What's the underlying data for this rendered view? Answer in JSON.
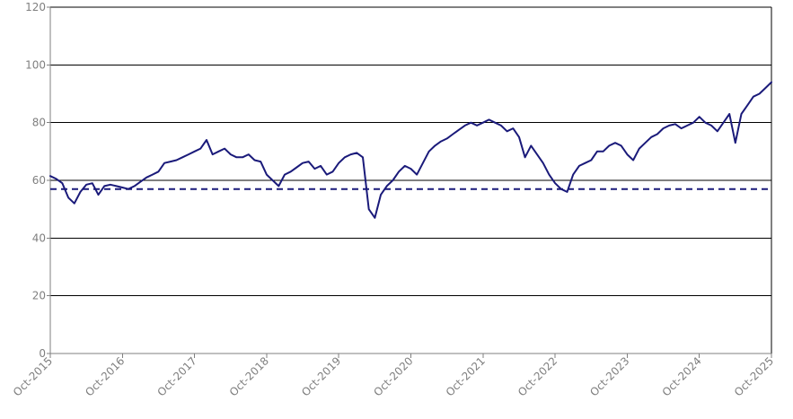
{
  "chart_data": {
    "type": "line",
    "title": "",
    "xlabel": "",
    "ylabel": "",
    "ylim": [
      0,
      120
    ],
    "yticks": [
      0,
      20,
      40,
      60,
      80,
      100,
      120
    ],
    "xlim": [
      "2015-10",
      "2025-10"
    ],
    "xticks": [
      "Oct-2015",
      "Oct-2016",
      "Oct-2017",
      "Oct-2018",
      "Oct-2019",
      "Oct-2020",
      "Oct-2021",
      "Oct-2022",
      "Oct-2023",
      "Oct-2024",
      "Oct-2025"
    ],
    "grid": "horizontal",
    "legend": "none",
    "series": [
      {
        "color": "#1a1a7a",
        "style": "solid",
        "x": [
          "2015-10",
          "2015-11",
          "2015-12",
          "2016-01",
          "2016-02",
          "2016-03",
          "2016-04",
          "2016-05",
          "2016-06",
          "2016-07",
          "2016-08",
          "2016-09",
          "2016-10",
          "2016-11",
          "2016-12",
          "2017-01",
          "2017-02",
          "2017-03",
          "2017-04",
          "2017-05",
          "2017-06",
          "2017-07",
          "2017-08",
          "2017-09",
          "2017-10",
          "2017-11",
          "2017-12",
          "2018-01",
          "2018-02",
          "2018-03",
          "2018-04",
          "2018-05",
          "2018-06",
          "2018-07",
          "2018-08",
          "2018-09",
          "2018-10",
          "2018-11",
          "2018-12",
          "2019-01",
          "2019-02",
          "2019-03",
          "2019-04",
          "2019-05",
          "2019-06",
          "2019-07",
          "2019-08",
          "2019-09",
          "2019-10",
          "2019-11",
          "2019-12",
          "2020-01",
          "2020-02",
          "2020-03",
          "2020-04",
          "2020-05",
          "2020-06",
          "2020-07",
          "2020-08",
          "2020-09",
          "2020-10",
          "2020-11",
          "2020-12",
          "2021-01",
          "2021-02",
          "2021-03",
          "2021-04",
          "2021-05",
          "2021-06",
          "2021-07",
          "2021-08",
          "2021-09",
          "2021-10",
          "2021-11",
          "2021-12",
          "2022-01",
          "2022-02",
          "2022-03",
          "2022-04",
          "2022-05",
          "2022-06",
          "2022-07",
          "2022-08",
          "2022-09",
          "2022-10",
          "2022-11",
          "2022-12",
          "2023-01",
          "2023-02",
          "2023-03",
          "2023-04",
          "2023-05",
          "2023-06",
          "2023-07",
          "2023-08",
          "2023-09",
          "2023-10",
          "2023-11",
          "2023-12",
          "2024-01",
          "2024-02",
          "2024-03",
          "2024-04",
          "2024-05",
          "2024-06",
          "2024-07",
          "2024-08",
          "2024-09",
          "2024-10",
          "2024-11",
          "2024-12",
          "2025-01",
          "2025-02",
          "2025-03",
          "2025-04",
          "2025-05",
          "2025-06",
          "2025-07",
          "2025-08",
          "2025-09",
          "2025-10"
        ],
        "values": [
          61.5,
          60.5,
          59,
          54,
          52,
          56,
          58.5,
          59,
          55,
          58,
          58.5,
          58,
          57.5,
          57,
          58,
          59.5,
          61,
          62,
          63,
          66,
          66.5,
          67,
          68,
          69,
          70,
          71,
          74,
          69,
          70,
          71,
          69,
          68,
          68,
          69,
          67,
          66.5,
          62,
          60,
          58,
          62,
          63,
          64.5,
          66,
          66.5,
          64,
          65,
          62,
          63,
          66,
          68,
          69,
          69.5,
          68,
          50,
          47,
          55,
          58,
          60,
          63,
          65,
          64,
          62,
          66,
          70,
          72,
          73.5,
          74.5,
          76,
          77.5,
          79,
          80,
          79,
          80,
          81,
          80,
          79,
          77,
          78,
          75,
          68,
          72,
          69,
          66,
          62,
          59,
          57,
          56,
          62,
          65,
          66,
          67,
          70,
          70,
          72,
          73,
          72,
          69,
          67,
          71,
          73,
          75,
          76,
          78,
          79,
          79.5,
          78,
          79,
          80,
          82,
          80,
          79,
          77,
          80,
          83,
          73,
          83,
          86,
          89,
          90,
          92,
          94
        ]
      },
      {
        "color": "#1a1a7a",
        "style": "dashed",
        "x": [
          "2015-10",
          "2025-10"
        ],
        "values": [
          57,
          57
        ]
      }
    ]
  }
}
